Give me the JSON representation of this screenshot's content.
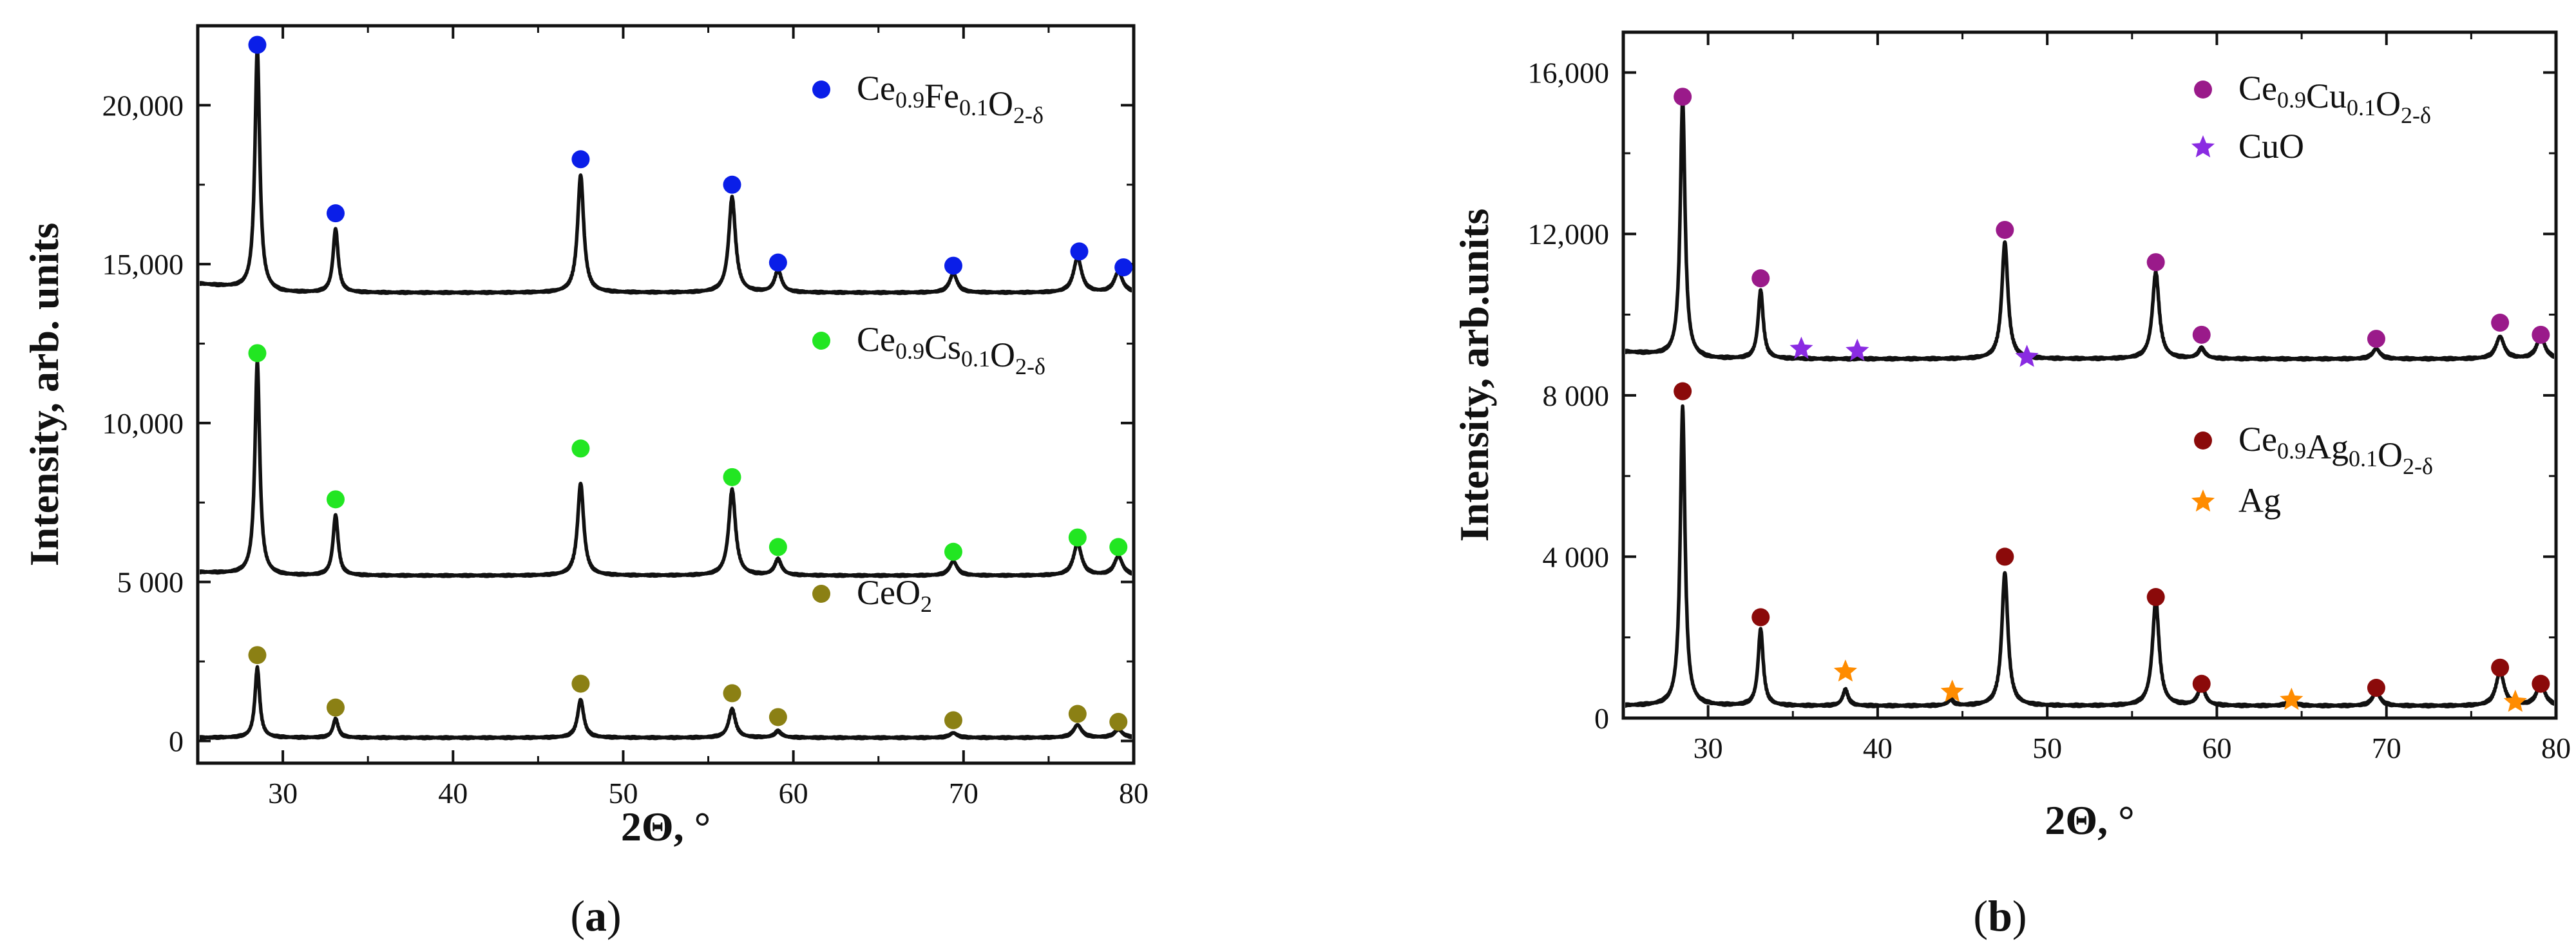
{
  "chart_data": [
    {
      "panel": "a",
      "type": "line",
      "panel_label_parts": [
        "(",
        "a",
        ")"
      ],
      "xlabel_text": "2Θ, °",
      "ylabel": "Intensity, arb. units",
      "xlim": [
        25,
        80
      ],
      "ylim": [
        -700,
        22500
      ],
      "x_ticks": [
        30,
        40,
        50,
        60,
        70,
        80
      ],
      "x_tick_labels": [
        "30",
        "40",
        "50",
        "60",
        "70",
        "80"
      ],
      "y_ticks": [
        0,
        5000,
        10000,
        15000,
        20000
      ],
      "y_tick_labels": [
        "0",
        "5 000",
        "10,000",
        "15,000",
        "20,000"
      ],
      "series": [
        {
          "name": "Ce0.9Fe0.1O2-δ",
          "legend_parts": [
            [
              "Ce",
              ""
            ],
            [
              "0.9",
              "sub"
            ],
            [
              "Fe",
              ""
            ],
            [
              "0.1",
              "sub"
            ],
            [
              "O",
              ""
            ],
            [
              "2-δ",
              "sub"
            ]
          ],
          "marker": "circle",
          "color": "#0a1ee8",
          "baseline": 14100,
          "peaks": [
            [
              28.5,
              7600
            ],
            [
              33.1,
              2000
            ],
            [
              47.5,
              3700
            ],
            [
              56.4,
              3000
            ],
            [
              59.1,
              700
            ],
            [
              69.4,
              600
            ],
            [
              76.7,
              1100
            ],
            [
              79.1,
              650
            ]
          ],
          "markers": [
            [
              28.5,
              21900
            ],
            [
              33.1,
              16600
            ],
            [
              47.5,
              18300
            ],
            [
              56.4,
              17500
            ],
            [
              59.1,
              15050
            ],
            [
              69.4,
              14950
            ],
            [
              76.8,
              15400
            ],
            [
              79.4,
              14900
            ]
          ]
        },
        {
          "name": "Ce0.9Cs0.1O2-δ",
          "legend_parts": [
            [
              "Ce",
              ""
            ],
            [
              "0.9",
              "sub"
            ],
            [
              "Cs",
              ""
            ],
            [
              "0.1",
              "sub"
            ],
            [
              "O",
              ""
            ],
            [
              "2-δ",
              "sub"
            ]
          ],
          "marker": "circle",
          "color": "#22e622",
          "baseline": 5200,
          "peaks": [
            [
              28.5,
              6700
            ],
            [
              33.1,
              1900
            ],
            [
              47.5,
              2900
            ],
            [
              56.4,
              2700
            ],
            [
              59.1,
              500
            ],
            [
              69.4,
              450
            ],
            [
              76.7,
              1000
            ],
            [
              79.1,
              600
            ]
          ],
          "markers": [
            [
              28.5,
              12200
            ],
            [
              33.1,
              7600
            ],
            [
              47.5,
              9200
            ],
            [
              56.4,
              8300
            ],
            [
              59.1,
              6100
            ],
            [
              69.4,
              5950
            ],
            [
              76.7,
              6400
            ],
            [
              79.1,
              6100
            ]
          ]
        },
        {
          "name": "CeO2",
          "legend_parts": [
            [
              "CeO",
              ""
            ],
            [
              "2",
              "sub"
            ]
          ],
          "marker": "circle",
          "color": "#8b8014",
          "baseline": 100,
          "peaks": [
            [
              28.5,
              2200
            ],
            [
              33.1,
              600
            ],
            [
              47.5,
              1200
            ],
            [
              56.4,
              900
            ],
            [
              59.1,
              200
            ],
            [
              69.4,
              150
            ],
            [
              76.7,
              400
            ],
            [
              79.1,
              250
            ]
          ],
          "markers": [
            [
              28.5,
              2700
            ],
            [
              33.1,
              1050
            ],
            [
              47.5,
              1800
            ],
            [
              56.4,
              1500
            ],
            [
              59.1,
              750
            ],
            [
              69.4,
              650
            ],
            [
              76.7,
              850
            ],
            [
              79.1,
              600
            ]
          ]
        }
      ]
    },
    {
      "panel": "b",
      "type": "line",
      "panel_label_parts": [
        "(",
        "b",
        ")"
      ],
      "xlabel_text": "2Θ, °",
      "ylabel": "Intensity, arb.units",
      "xlim": [
        25,
        80
      ],
      "ylim": [
        0,
        17000
      ],
      "x_ticks": [
        30,
        40,
        50,
        60,
        70,
        80
      ],
      "x_tick_labels": [
        "30",
        "40",
        "50",
        "60",
        "70",
        "80"
      ],
      "y_ticks": [
        0,
        4000,
        8000,
        12000,
        16000
      ],
      "y_tick_labels": [
        "0",
        "4 000",
        "8 000",
        "12,000",
        "16,000"
      ],
      "series": [
        {
          "name": "Ce0.9Cu0.1O2-δ",
          "legend_parts": [
            [
              "Ce",
              ""
            ],
            [
              "0.9",
              "sub"
            ],
            [
              "Cu",
              ""
            ],
            [
              "0.1",
              "sub"
            ],
            [
              "O",
              ""
            ],
            [
              "2-δ",
              "sub"
            ]
          ],
          "marker": "circle",
          "color": "#9a1a8a",
          "baseline": 8900,
          "peaks": [
            [
              28.5,
              6400
            ],
            [
              33.1,
              1700
            ],
            [
              47.5,
              2900
            ],
            [
              56.4,
              2150
            ],
            [
              59.1,
              250
            ],
            [
              69.4,
              250
            ],
            [
              76.7,
              550
            ],
            [
              79.1,
              550
            ]
          ],
          "markers": [
            [
              28.5,
              15400
            ],
            [
              33.1,
              10900
            ],
            [
              47.5,
              12100
            ],
            [
              56.4,
              11300
            ],
            [
              59.1,
              9500
            ],
            [
              69.4,
              9400
            ],
            [
              76.7,
              9800
            ],
            [
              79.1,
              9500
            ]
          ]
        },
        {
          "name": "CuO",
          "legend_parts": [
            [
              "CuO",
              ""
            ]
          ],
          "marker": "star",
          "color": "#8a2be2",
          "markers": [
            [
              35.5,
              9150
            ],
            [
              38.8,
              9100
            ],
            [
              48.8,
              8950
            ]
          ]
        },
        {
          "name": "Ce0.9Ag0.1O2-δ",
          "legend_parts": [
            [
              "Ce",
              ""
            ],
            [
              "0.9",
              "sub"
            ],
            [
              "Ag",
              ""
            ],
            [
              "0.1",
              "sub"
            ],
            [
              "O",
              ""
            ],
            [
              "2-δ",
              "sub"
            ]
          ],
          "marker": "circle",
          "color": "#8b0a0a",
          "baseline": 300,
          "peaks": [
            [
              28.5,
              7400
            ],
            [
              33.1,
              1900
            ],
            [
              38.1,
              400
            ],
            [
              44.3,
              150
            ],
            [
              47.5,
              3300
            ],
            [
              56.4,
              2600
            ],
            [
              59.1,
              500
            ],
            [
              64.4,
              150
            ],
            [
              69.4,
              350
            ],
            [
              76.7,
              850
            ],
            [
              79.1,
              550
            ]
          ],
          "markers": [
            [
              28.5,
              8100
            ],
            [
              33.1,
              2500
            ],
            [
              47.5,
              4000
            ],
            [
              56.4,
              3000
            ],
            [
              59.1,
              850
            ],
            [
              69.4,
              750
            ],
            [
              76.7,
              1250
            ],
            [
              79.1,
              850
            ]
          ]
        },
        {
          "name": "Ag",
          "legend_parts": [
            [
              "Ag",
              ""
            ]
          ],
          "marker": "star",
          "color": "#ff8c00",
          "markers": [
            [
              38.1,
              1150
            ],
            [
              44.4,
              650
            ],
            [
              64.4,
              450
            ],
            [
              77.6,
              400
            ]
          ]
        }
      ]
    }
  ]
}
